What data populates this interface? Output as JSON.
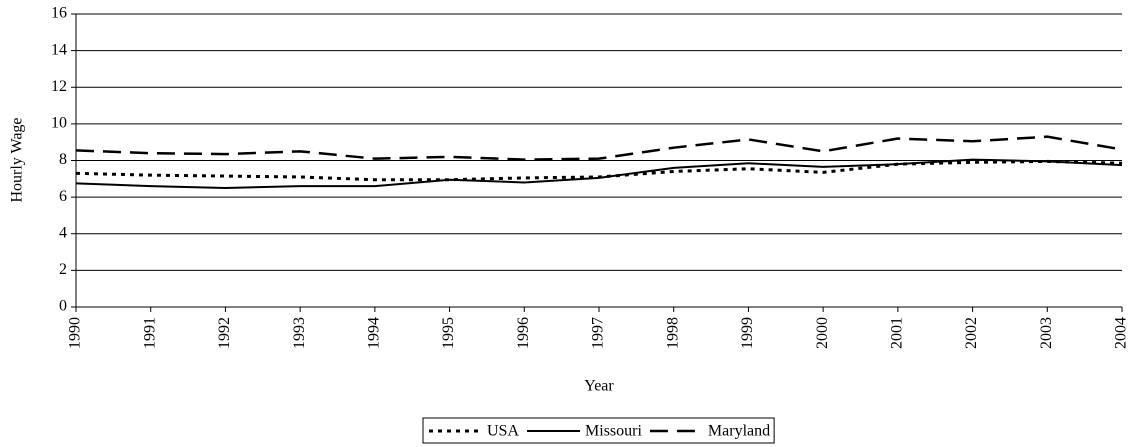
{
  "chart_data": {
    "type": "line",
    "x_label": "Year",
    "y_label": "Hourly Wage",
    "x": [
      1990,
      1991,
      1992,
      1993,
      1994,
      1995,
      1996,
      1997,
      1998,
      1999,
      2000,
      2001,
      2002,
      2003,
      2004
    ],
    "xlim": [
      1990,
      2004
    ],
    "xticks": [
      1990,
      1991,
      1992,
      1993,
      1994,
      1995,
      1996,
      1997,
      1998,
      1999,
      2000,
      2001,
      2002,
      2003,
      2004
    ],
    "ylim": [
      0,
      16
    ],
    "yticks": [
      0,
      2,
      4,
      6,
      8,
      10,
      12,
      14,
      16
    ],
    "grid": true,
    "legend": "bottom",
    "series": [
      {
        "name": "USA",
        "color": "#000000",
        "dash": "dotted",
        "values": [
          7.3,
          7.2,
          7.15,
          7.1,
          6.95,
          6.95,
          7.05,
          7.1,
          7.4,
          7.55,
          7.35,
          7.8,
          7.9,
          7.95,
          7.85
        ]
      },
      {
        "name": "Missouri",
        "color": "#000000",
        "dash": "solid",
        "values": [
          6.75,
          6.6,
          6.5,
          6.6,
          6.6,
          6.95,
          6.8,
          7.05,
          7.6,
          7.85,
          7.65,
          7.8,
          8.05,
          7.95,
          7.75
        ]
      },
      {
        "name": "Maryland",
        "color": "#000000",
        "dash": "dashed",
        "values": [
          8.55,
          8.4,
          8.35,
          8.5,
          8.1,
          8.2,
          8.05,
          8.1,
          8.7,
          9.15,
          8.5,
          9.2,
          9.05,
          9.3,
          8.6
        ]
      }
    ]
  }
}
